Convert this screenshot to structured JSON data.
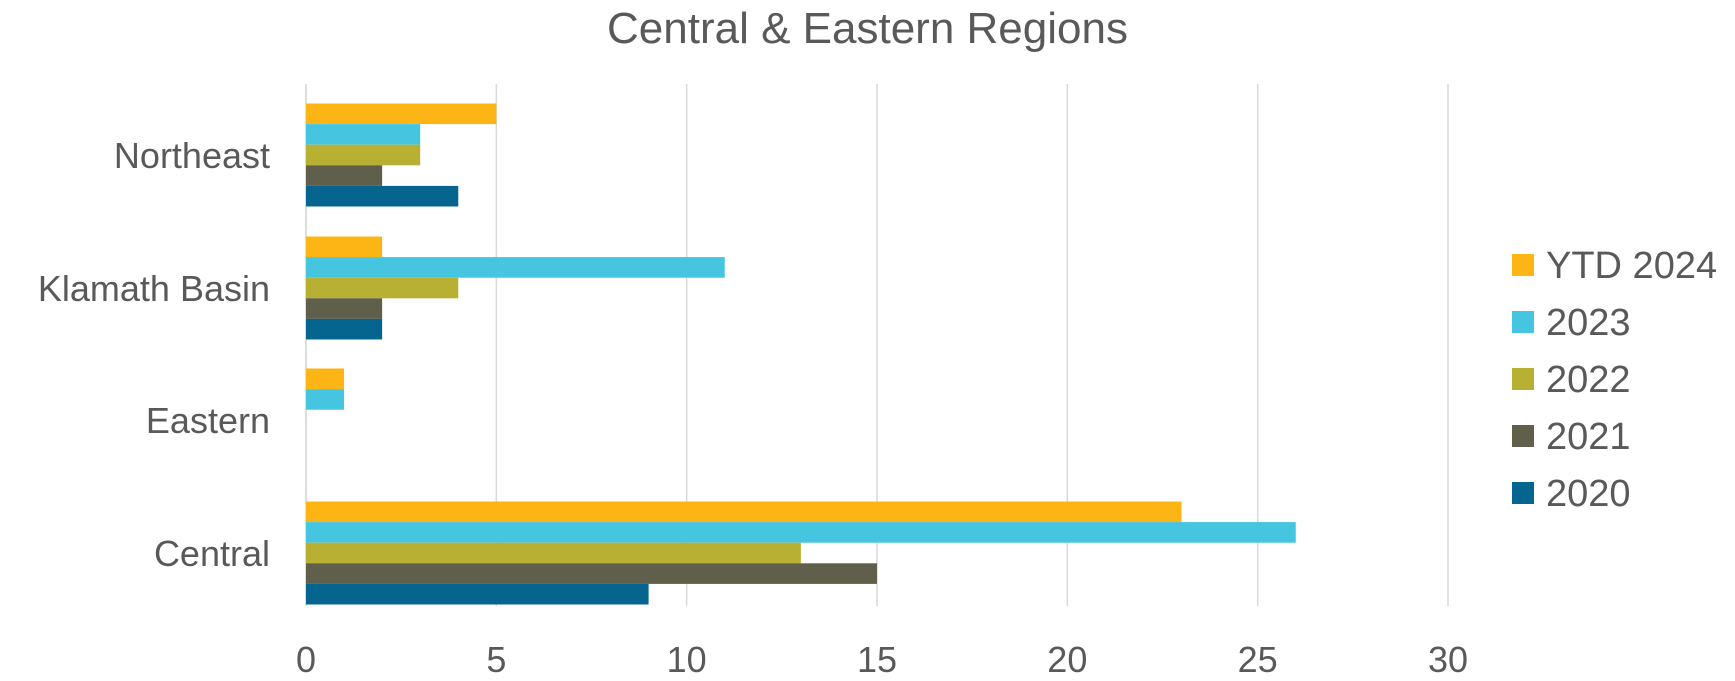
{
  "chart_data": {
    "type": "bar",
    "orientation": "horizontal",
    "title": "Central & Eastern Regions",
    "xlabel": "",
    "ylabel": "",
    "xlim": [
      0,
      30
    ],
    "x_ticks": [
      0,
      5,
      10,
      15,
      20,
      25,
      30
    ],
    "grid": true,
    "legend_position": "right",
    "categories": [
      "Northeast",
      "Klamath Basin",
      "Eastern",
      "Central"
    ],
    "series": [
      {
        "name": "YTD 2024",
        "color": "#FDB515",
        "values": [
          5,
          2,
          1,
          23
        ]
      },
      {
        "name": "2023",
        "color": "#45C5E0",
        "values": [
          3,
          11,
          1,
          26
        ]
      },
      {
        "name": "2022",
        "color": "#B8B032",
        "values": [
          3,
          4,
          0,
          13
        ]
      },
      {
        "name": "2021",
        "color": "#5F5F4C",
        "values": [
          2,
          2,
          0,
          15
        ]
      },
      {
        "name": "2020",
        "color": "#05658F",
        "values": [
          4,
          2,
          0,
          9
        ]
      }
    ]
  }
}
